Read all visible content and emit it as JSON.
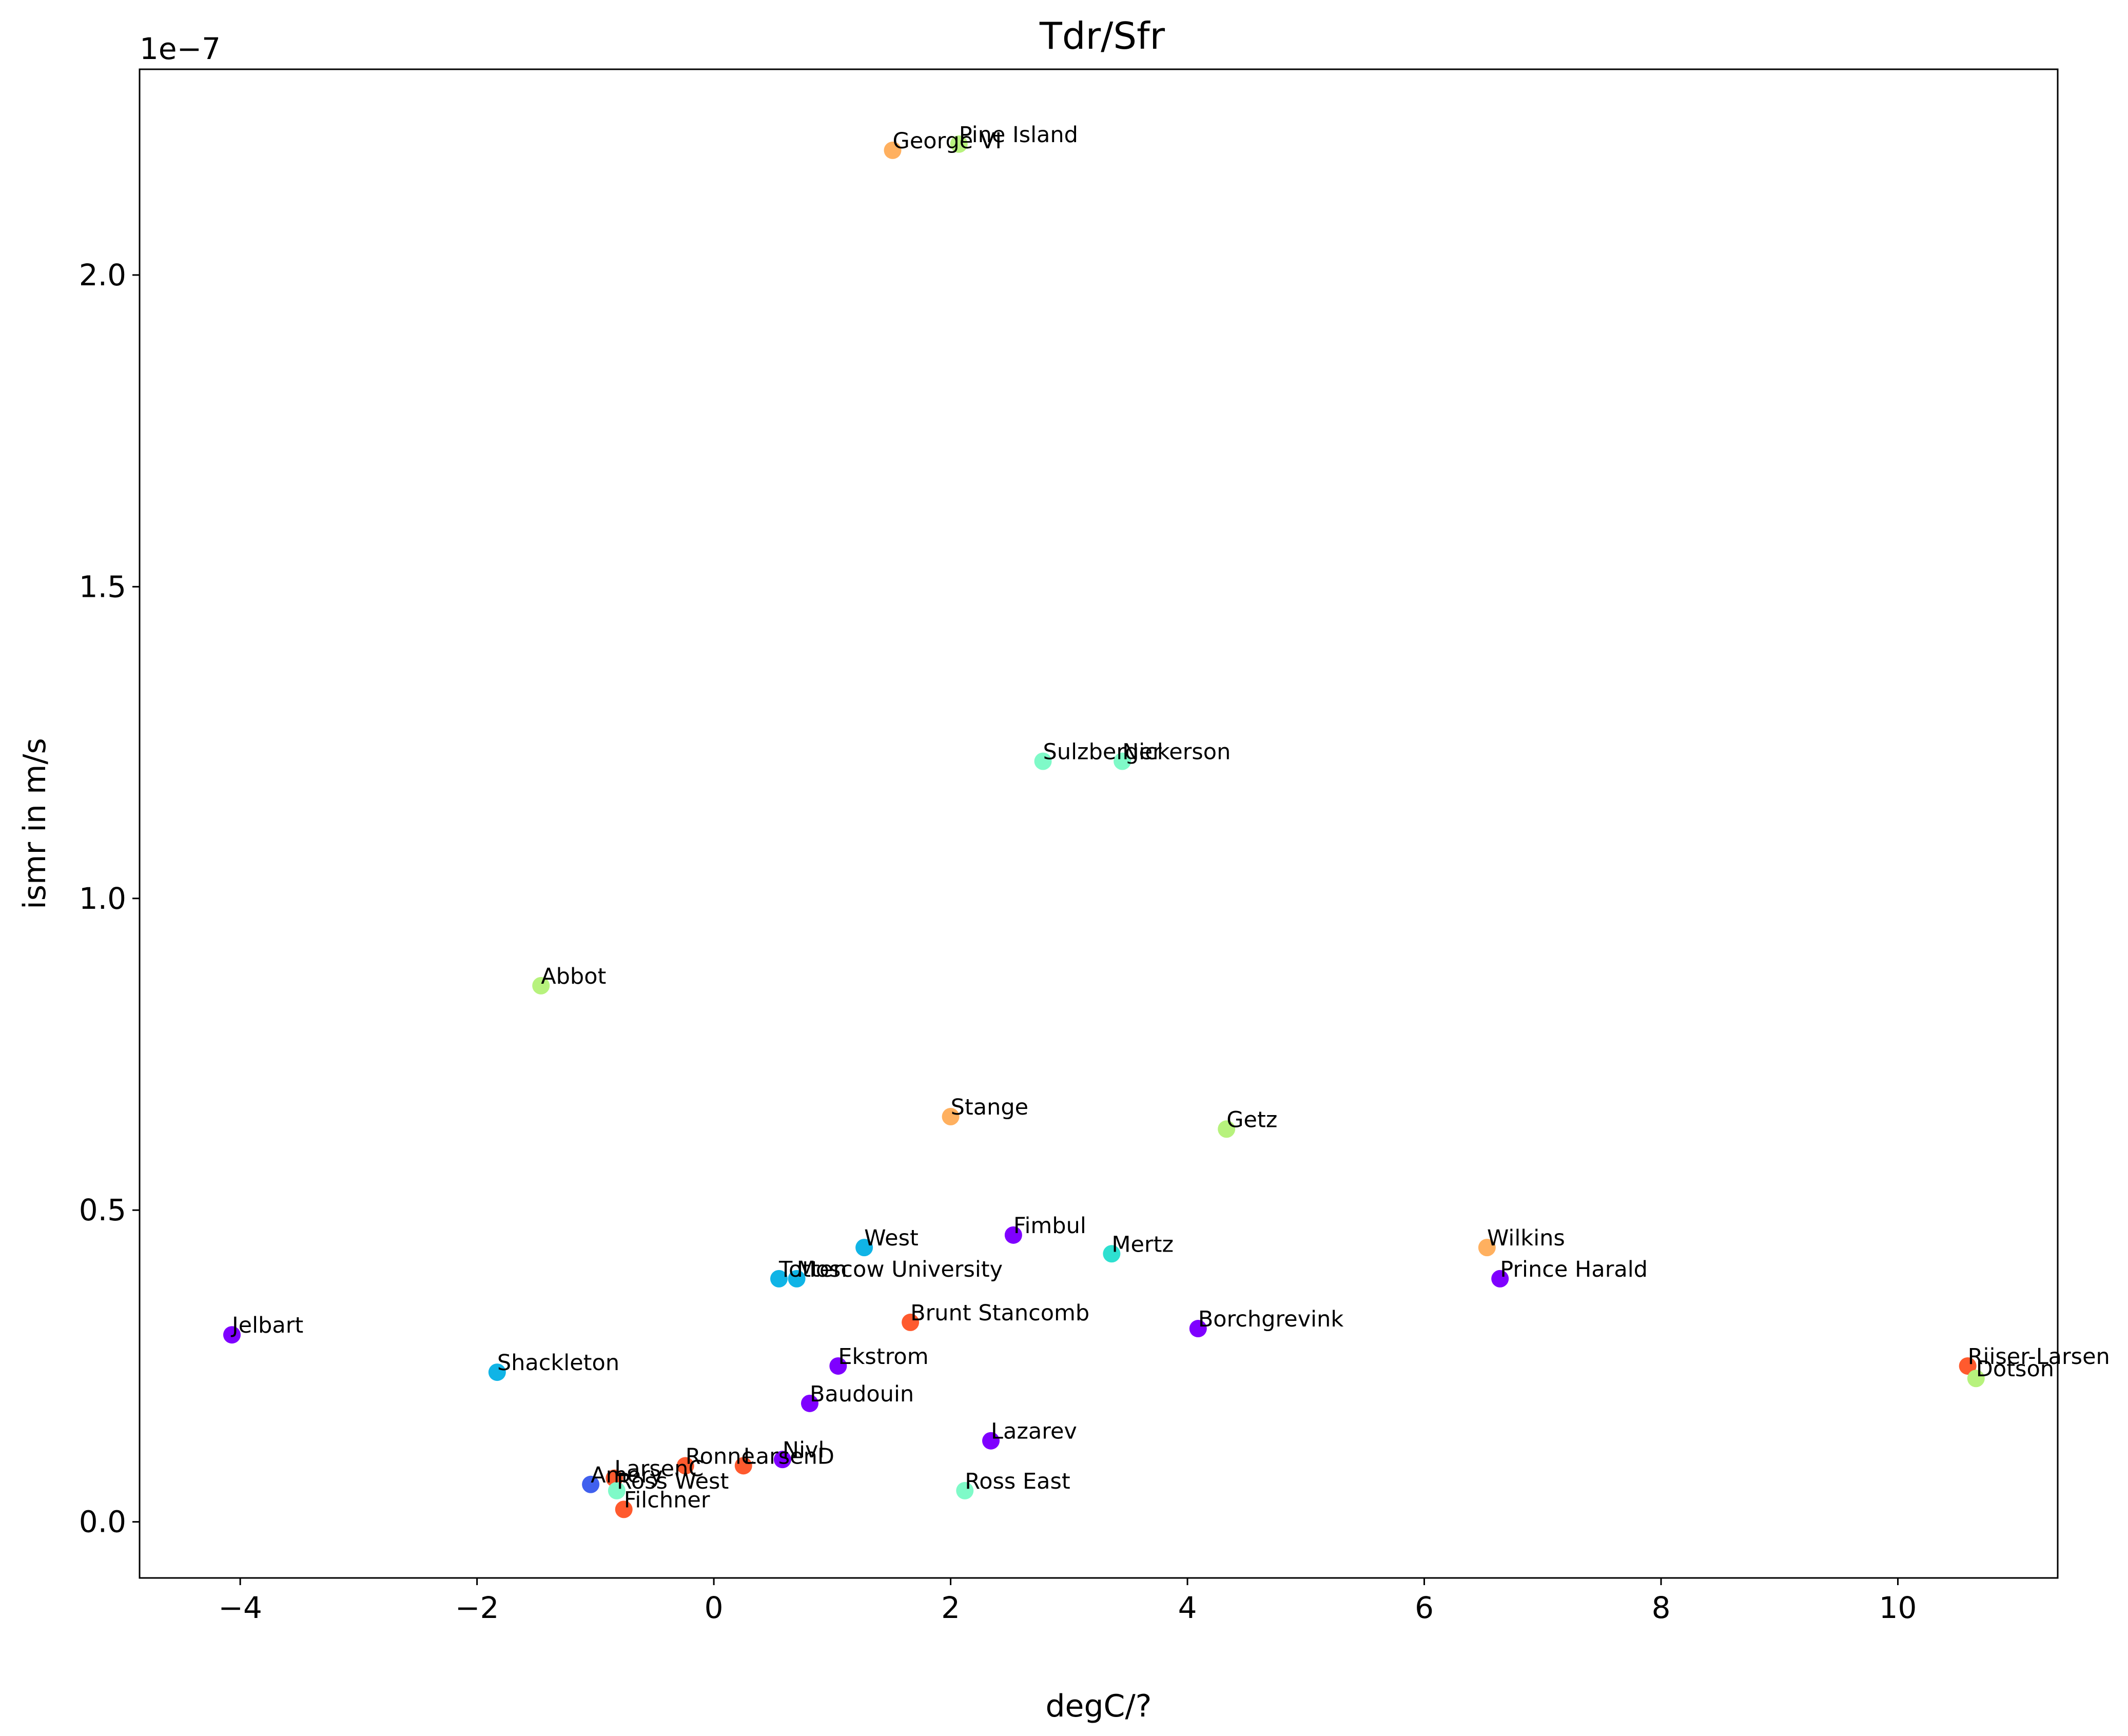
{
  "chart_data": {
    "type": "scatter",
    "title": "Tdr/Sfr",
    "xlabel": "degC/?",
    "ylabel": "ismr in m/s",
    "y_scale_label": "1e−7",
    "xlim": [
      -4.85,
      11.35
    ],
    "ylim": [
      -0.09,
      2.33
    ],
    "x_ticks": [
      -4,
      -2,
      0,
      2,
      4,
      6,
      8,
      10
    ],
    "x_tick_labels": [
      "−4",
      "−2",
      "0",
      "2",
      "4",
      "6",
      "8",
      "10"
    ],
    "y_ticks": [
      0.0,
      0.5,
      1.0,
      1.5,
      2.0
    ],
    "y_tick_labels": [
      "0.0",
      "0.5",
      "1.0",
      "1.5",
      "2.0"
    ],
    "grid": false,
    "points": [
      {
        "name": "George VI",
        "x": 1.51,
        "y": 2.2,
        "color": "#ffb05f"
      },
      {
        "name": "Pine Island",
        "x": 2.07,
        "y": 2.21,
        "color": "#b7f27d"
      },
      {
        "name": "Sulzberger",
        "x": 2.78,
        "y": 1.22,
        "color": "#7ffac8"
      },
      {
        "name": "Nickerson",
        "x": 3.45,
        "y": 1.22,
        "color": "#7ffac8"
      },
      {
        "name": "Abbot",
        "x": -1.46,
        "y": 0.86,
        "color": "#b7f27d"
      },
      {
        "name": "Stange",
        "x": 2.0,
        "y": 0.65,
        "color": "#ffb05f"
      },
      {
        "name": "Getz",
        "x": 4.33,
        "y": 0.63,
        "color": "#b7f27d"
      },
      {
        "name": "West",
        "x": 1.27,
        "y": 0.44,
        "color": "#10b4e6"
      },
      {
        "name": "Fimbul",
        "x": 2.53,
        "y": 0.46,
        "color": "#7f00ff"
      },
      {
        "name": "Mertz",
        "x": 3.36,
        "y": 0.43,
        "color": "#2ee0d0"
      },
      {
        "name": "Wilkins",
        "x": 6.53,
        "y": 0.44,
        "color": "#ffb05f"
      },
      {
        "name": "Totten",
        "x": 0.55,
        "y": 0.39,
        "color": "#10b4e6"
      },
      {
        "name": "Moscow University",
        "x": 0.7,
        "y": 0.39,
        "color": "#10b4e6"
      },
      {
        "name": "Prince Harald",
        "x": 6.64,
        "y": 0.39,
        "color": "#7f00ff"
      },
      {
        "name": "Brunt Stancomb",
        "x": 1.66,
        "y": 0.32,
        "color": "#ff5a2e"
      },
      {
        "name": "Borchgrevink",
        "x": 4.09,
        "y": 0.31,
        "color": "#7f00ff"
      },
      {
        "name": "Jelbart",
        "x": -4.07,
        "y": 0.3,
        "color": "#7f00ff"
      },
      {
        "name": "Riiser-Larsen",
        "x": 10.59,
        "y": 0.25,
        "color": "#ff5a2e"
      },
      {
        "name": "Shackleton",
        "x": -1.83,
        "y": 0.24,
        "color": "#10b4e6"
      },
      {
        "name": "Ekstrom",
        "x": 1.05,
        "y": 0.25,
        "color": "#7f00ff"
      },
      {
        "name": "Dotson",
        "x": 10.66,
        "y": 0.23,
        "color": "#b7f27d"
      },
      {
        "name": "Baudouin",
        "x": 0.81,
        "y": 0.19,
        "color": "#7f00ff"
      },
      {
        "name": "Lazarev",
        "x": 2.34,
        "y": 0.13,
        "color": "#7f00ff"
      },
      {
        "name": "Nivl",
        "x": 0.58,
        "y": 0.1,
        "color": "#7f00ff"
      },
      {
        "name": "Ronne",
        "x": -0.24,
        "y": 0.09,
        "color": "#ff5a2e"
      },
      {
        "name": "LarsenD",
        "x": 0.25,
        "y": 0.09,
        "color": "#ff5a2e"
      },
      {
        "name": "LarsenC",
        "x": -0.84,
        "y": 0.07,
        "color": "#ff5a2e"
      },
      {
        "name": "Amery",
        "x": -1.04,
        "y": 0.06,
        "color": "#4060ee"
      },
      {
        "name": "Ross West",
        "x": -0.82,
        "y": 0.05,
        "color": "#7ffac8"
      },
      {
        "name": "Ross East",
        "x": 2.12,
        "y": 0.05,
        "color": "#7ffac8"
      },
      {
        "name": "Filchner",
        "x": -0.76,
        "y": 0.02,
        "color": "#ff5a2e"
      }
    ]
  }
}
